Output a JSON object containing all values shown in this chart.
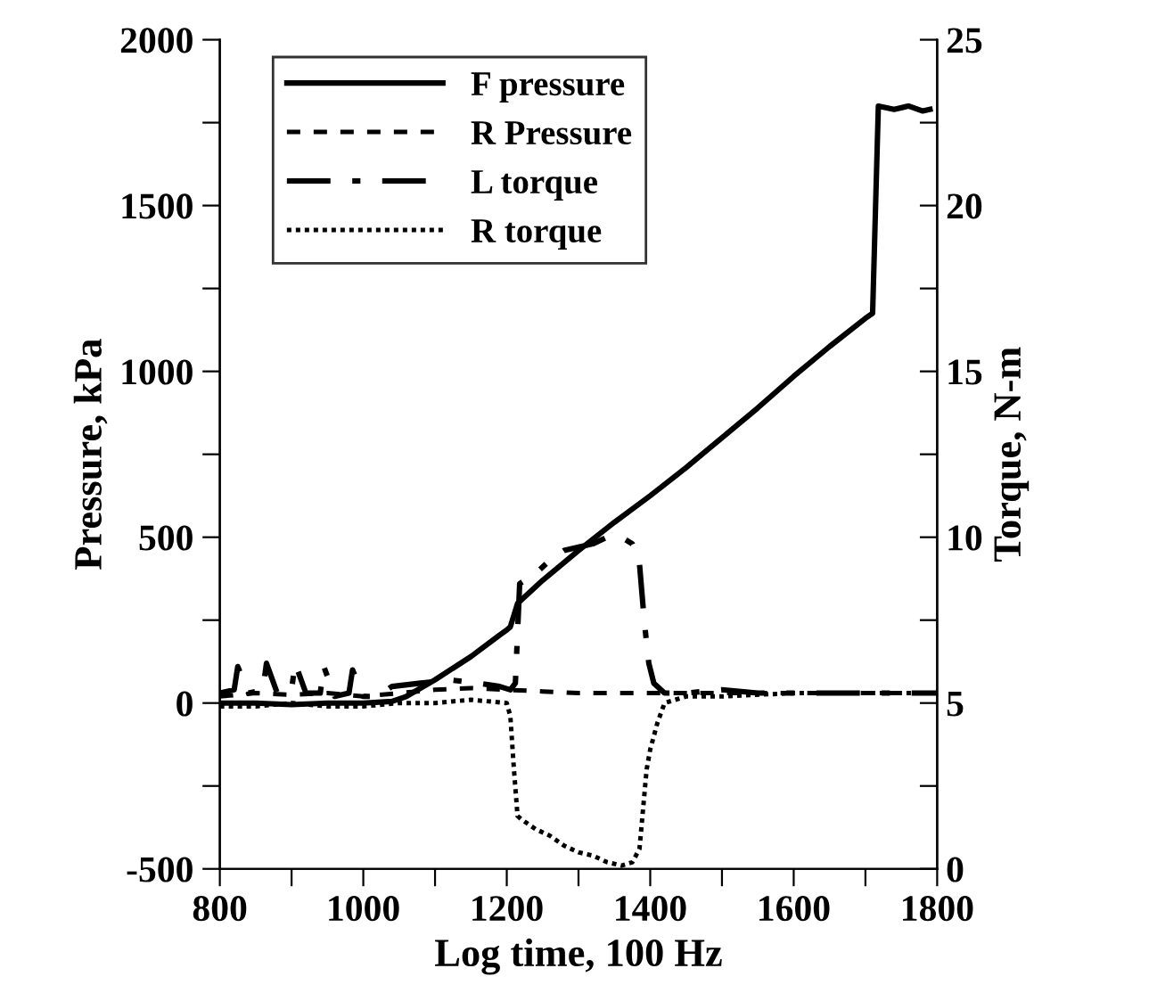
{
  "chart_data": {
    "type": "line",
    "xlabel": "Log time, 100 Hz",
    "ylabel": "Pressure, kPa",
    "y2label": "Torque, N-m",
    "xlim": [
      800,
      1800
    ],
    "xticks": [
      800,
      {
        "value": 900,
        "label": null
      },
      1000,
      {
        "value": 1100,
        "label": null
      },
      1200,
      {
        "value": 1300,
        "label": null
      },
      1400,
      {
        "value": 1500,
        "label": null
      },
      1600,
      {
        "value": 1700,
        "label": null
      },
      1800
    ],
    "ylim": [
      -500,
      2000
    ],
    "yticks": [
      -500,
      {
        "value": -250,
        "label": null
      },
      0,
      {
        "value": 250,
        "label": null
      },
      500,
      {
        "value": 750,
        "label": null
      },
      1000,
      {
        "value": 1250,
        "label": null
      },
      1500,
      {
        "value": 1750,
        "label": null
      },
      2000
    ],
    "y2lim": [
      0,
      25
    ],
    "y2ticks": [
      0,
      {
        "value": 2.5,
        "label": null
      },
      5,
      {
        "value": 7.5,
        "label": null
      },
      10,
      {
        "value": 12.5,
        "label": null
      },
      15,
      {
        "value": 17.5,
        "label": null
      },
      20,
      {
        "value": 22.5,
        "label": null
      },
      25
    ],
    "grid": false,
    "legend": "top left",
    "marker": "none",
    "series": [
      {
        "name": "F pressure",
        "color": "#000000",
        "line_style": "solid",
        "x": [
          800,
          850,
          900,
          950,
          1000,
          1040,
          1060,
          1100,
          1150,
          1190,
          1200,
          1205,
          1215,
          1250,
          1300,
          1350,
          1400,
          1450,
          1500,
          1550,
          1600,
          1650,
          1700,
          1710,
          1718,
          1740,
          1760,
          1780,
          1790
        ],
        "values": [
          0,
          0,
          -5,
          0,
          0,
          5,
          20,
          70,
          140,
          205,
          220,
          230,
          300,
          370,
          460,
          545,
          625,
          710,
          800,
          890,
          985,
          1075,
          1160,
          1175,
          1800,
          1790,
          1800,
          1785,
          1790
        ]
      },
      {
        "name": "R Pressure",
        "color": "#000000",
        "line_style": "dashed",
        "x": [
          800,
          850,
          900,
          950,
          1000,
          1050,
          1100,
          1150,
          1200,
          1250,
          1300,
          1350,
          1400,
          1450,
          1500,
          1550,
          1600,
          1650,
          1700,
          1750,
          1800
        ],
        "values": [
          20,
          30,
          25,
          30,
          20,
          30,
          40,
          45,
          40,
          35,
          30,
          30,
          30,
          30,
          30,
          30,
          30,
          30,
          30,
          30,
          30
        ]
      },
      {
        "name": "L torque",
        "color": "#000000",
        "line_style": "dashdot",
        "axis": "y2",
        "x": [
          800,
          820,
          825,
          840,
          860,
          865,
          880,
          900,
          905,
          920,
          940,
          945,
          960,
          980,
          985,
          1000,
          1020,
          1040,
          1080,
          1120,
          1160,
          1190,
          1205,
          1212,
          1218,
          1240,
          1260,
          1280,
          1300,
          1320,
          1340,
          1360,
          1375,
          1385,
          1392,
          1398,
          1405,
          1420,
          1450,
          1500,
          1550,
          1600,
          1650,
          1700,
          1750,
          1800
        ],
        "values": [
          5.3,
          5.4,
          6.1,
          5.3,
          5.4,
          6.2,
          5.3,
          5.4,
          6.2,
          5.3,
          5.3,
          6.1,
          5.2,
          5.3,
          6.0,
          5.2,
          5.2,
          5.5,
          5.6,
          5.7,
          5.6,
          5.5,
          5.4,
          5.6,
          8.6,
          8.9,
          9.3,
          9.6,
          9.7,
          9.8,
          10.0,
          10.0,
          9.8,
          9.2,
          7.4,
          6.2,
          5.6,
          5.3,
          5.3,
          5.4,
          5.3,
          5.3,
          5.3,
          5.3,
          5.3,
          5.3
        ]
      },
      {
        "name": "R torque",
        "color": "#000000",
        "line_style": "dotted",
        "axis": "y2",
        "x": [
          800,
          850,
          900,
          950,
          1000,
          1050,
          1100,
          1150,
          1200,
          1205,
          1210,
          1215,
          1220,
          1240,
          1260,
          1280,
          1300,
          1320,
          1340,
          1360,
          1375,
          1385,
          1390,
          1395,
          1400,
          1410,
          1420,
          1450,
          1500,
          1600,
          1700,
          1800
        ],
        "values": [
          4.9,
          4.9,
          5.0,
          4.9,
          4.9,
          5.0,
          5.0,
          5.1,
          5.0,
          4.6,
          3.0,
          1.6,
          1.5,
          1.2,
          1.0,
          0.7,
          0.5,
          0.4,
          0.2,
          0.1,
          0.2,
          0.6,
          1.8,
          3.0,
          3.6,
          4.4,
          5.0,
          5.2,
          5.2,
          5.3,
          5.3,
          5.3
        ]
      }
    ]
  }
}
